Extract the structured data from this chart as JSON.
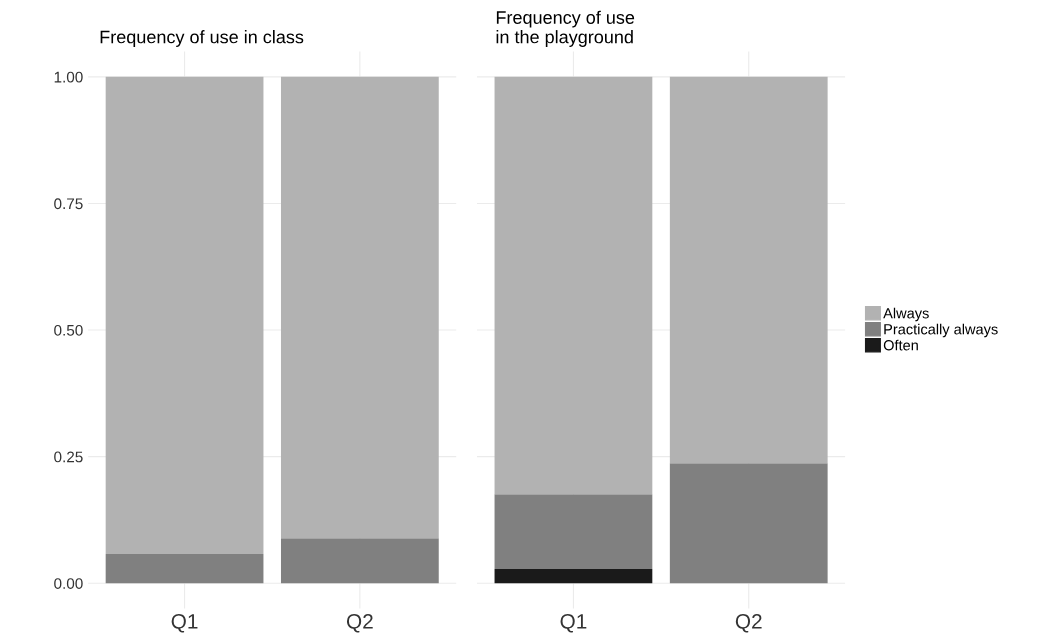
{
  "chart_data": [
    {
      "type": "bar",
      "title": "Frequency of use in class",
      "categories": [
        "Q1",
        "Q2"
      ],
      "stacked": true,
      "ylim": [
        -0.05,
        1.05
      ],
      "yticks": [
        {
          "value": 0,
          "label": "0.00"
        },
        {
          "value": 0.25,
          "label": "0.25"
        },
        {
          "value": 0.5,
          "label": "0.50"
        },
        {
          "value": 0.75,
          "label": "0.75"
        },
        {
          "value": 1,
          "label": "1.00"
        }
      ],
      "grid": true,
      "legend": false,
      "series": [
        {
          "color": "#1a1a1a",
          "values": [
            0,
            0
          ]
        },
        {
          "color": "#808080",
          "values": [
            0.058,
            0.089
          ]
        },
        {
          "color": "#b2b2b2",
          "values": [
            0.942,
            0.911
          ]
        }
      ]
    },
    {
      "type": "bar",
      "title": "Frequency of use\nin the playground",
      "categories": [
        "Q1",
        "Q2"
      ],
      "stacked": true,
      "ylim": [
        -0.05,
        1.05
      ],
      "yticks": [
        {
          "value": 0,
          "label": null
        },
        {
          "value": 0.25,
          "label": null
        },
        {
          "value": 0.5,
          "label": null
        },
        {
          "value": 0.75,
          "label": null
        },
        {
          "value": 1,
          "label": null
        }
      ],
      "grid": true,
      "legend": "right",
      "tick_labels": "x",
      "series": [
        {
          "name": "Often",
          "color": "#1a1a1a",
          "values": [
            0.028,
            0
          ]
        },
        {
          "name": "Practically always",
          "color": "#808080",
          "values": [
            0.148,
            0.237
          ]
        },
        {
          "name": "Always",
          "color": "#b2b2b2",
          "values": [
            0.824,
            0.763
          ]
        }
      ]
    }
  ]
}
